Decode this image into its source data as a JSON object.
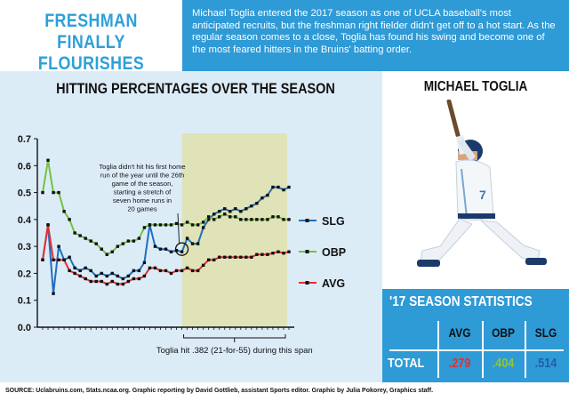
{
  "header": {
    "title_line1": "FRESHMAN",
    "title_line2": "FINALLY FLOURISHES",
    "intro": "Michael Toglia entered the 2017 season as one of UCLA baseball's most anticipated recruits, but the freshman right fielder didn't get off to a hot start. As the regular season comes to a close, Toglia has found his swing and become one of the most feared hitters in the Bruins' batting order."
  },
  "chart_data": {
    "type": "line",
    "title": "HITTING PERCENTAGES OVER THE SEASON",
    "ylim": [
      0,
      0.7
    ],
    "yticks": [
      "0.0",
      "0.1",
      "0.2",
      "0.3",
      "0.4",
      "0.5",
      "0.6",
      "0.7"
    ],
    "grid": false,
    "legend_position": "right",
    "highlight_span": [
      26,
      45
    ],
    "highlight_color": "#dfe3b7",
    "annotation": "Toglia didn't hit his first home run of the year until the 26th game of the season, starting a stretch of seven home runs in 20 games",
    "annotation_game": 26,
    "span_note": "Toglia hit .382 (21-for-55) during this span",
    "series": [
      {
        "name": "SLG",
        "color": "#1f6fbf",
        "values": [
          0.25,
          0.38,
          0.125,
          0.3,
          0.25,
          0.26,
          0.22,
          0.21,
          0.22,
          0.21,
          0.19,
          0.2,
          0.19,
          0.2,
          0.19,
          0.18,
          0.19,
          0.21,
          0.21,
          0.24,
          0.38,
          0.3,
          0.29,
          0.29,
          0.28,
          0.285,
          0.28,
          0.33,
          0.31,
          0.31,
          0.37,
          0.4,
          0.42,
          0.43,
          0.44,
          0.43,
          0.44,
          0.43,
          0.44,
          0.45,
          0.46,
          0.48,
          0.49,
          0.52,
          0.52,
          0.51,
          0.52
        ]
      },
      {
        "name": "OBP",
        "color": "#76c043",
        "values": [
          0.5,
          0.62,
          0.5,
          0.5,
          0.43,
          0.4,
          0.35,
          0.34,
          0.33,
          0.32,
          0.31,
          0.29,
          0.27,
          0.28,
          0.3,
          0.31,
          0.32,
          0.32,
          0.33,
          0.37,
          0.38,
          0.38,
          0.38,
          0.38,
          0.38,
          0.385,
          0.38,
          0.39,
          0.38,
          0.38,
          0.39,
          0.41,
          0.4,
          0.41,
          0.42,
          0.41,
          0.41,
          0.4,
          0.4,
          0.4,
          0.4,
          0.4,
          0.4,
          0.41,
          0.41,
          0.4,
          0.4
        ]
      },
      {
        "name": "AVG",
        "color": "#e62e2e",
        "values": [
          0.25,
          0.38,
          0.25,
          0.25,
          0.25,
          0.21,
          0.2,
          0.19,
          0.18,
          0.17,
          0.17,
          0.17,
          0.16,
          0.17,
          0.16,
          0.16,
          0.17,
          0.18,
          0.18,
          0.19,
          0.22,
          0.22,
          0.21,
          0.21,
          0.2,
          0.21,
          0.21,
          0.22,
          0.21,
          0.21,
          0.23,
          0.25,
          0.25,
          0.26,
          0.26,
          0.26,
          0.26,
          0.26,
          0.26,
          0.26,
          0.27,
          0.27,
          0.27,
          0.275,
          0.28,
          0.275,
          0.28
        ]
      }
    ]
  },
  "player": {
    "name": "MICHAEL TOGLIA",
    "jersey_number": "7"
  },
  "stats": {
    "title": "'17 SEASON STATISTICS",
    "headers": [
      "AVG",
      "OBP",
      "SLG"
    ],
    "row_label": "TOTAL",
    "values": [
      ".279",
      ".404",
      ".514"
    ],
    "colors": [
      "#e62e2e",
      "#8dc63f",
      "#1f5fa8"
    ]
  },
  "footer": {
    "source": "SOURCE: Uclabruins.com, Stats.ncaa.org. Graphic reporting by David Gottlieb, assistant Sports editor. Graphic by Julia Pokorey, Graphics staff."
  },
  "colors": {
    "brand_blue": "#2e9ad6",
    "chart_bg": "#dcecf7"
  }
}
